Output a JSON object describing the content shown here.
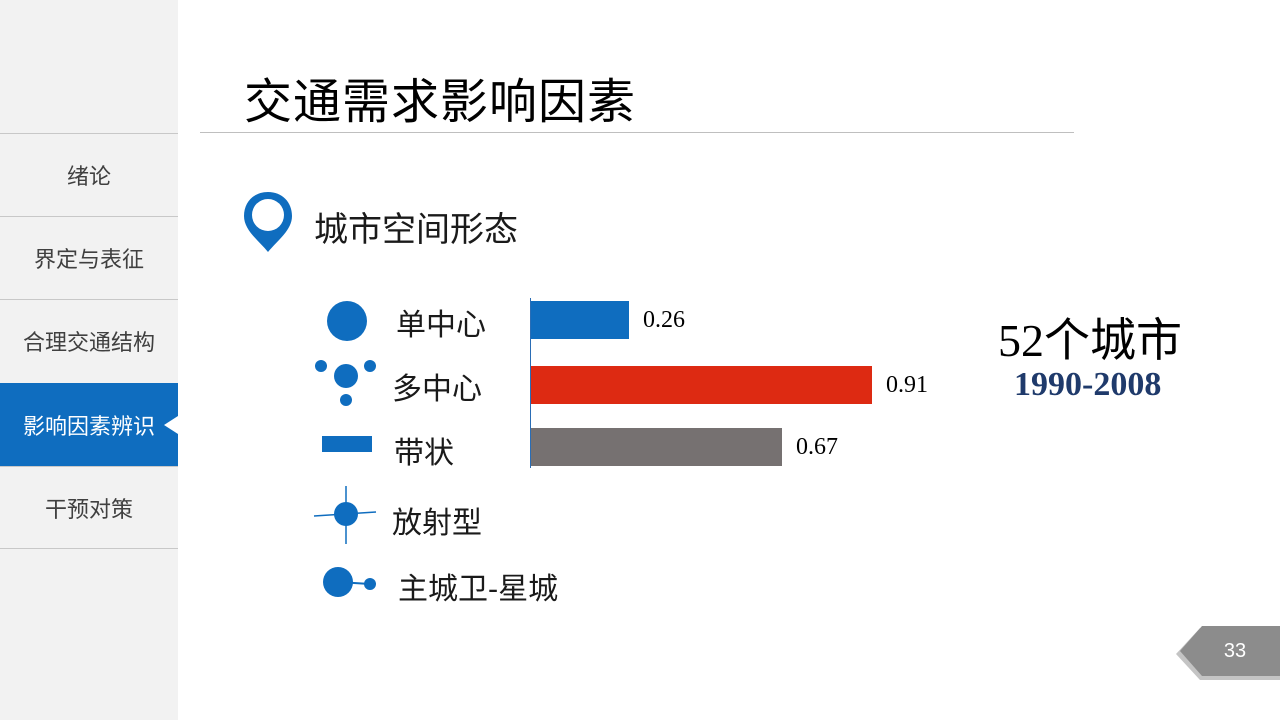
{
  "slide": {
    "title": "交通需求影响因素",
    "section_title": "城市空间形态",
    "page_number": "33"
  },
  "sidebar": {
    "items": [
      {
        "label": "绪论",
        "active": false
      },
      {
        "label": "界定与表征",
        "active": false
      },
      {
        "label": "合理交通结构",
        "active": false
      },
      {
        "label": "影响因素辨识",
        "active": true
      },
      {
        "label": "干预对策",
        "active": false
      }
    ]
  },
  "forms": [
    {
      "label": "单中心",
      "icon": "single-center-icon"
    },
    {
      "label": "多中心",
      "icon": "multi-center-icon"
    },
    {
      "label": "带状",
      "icon": "linear-band-icon"
    },
    {
      "label": "放射型",
      "icon": "radial-icon"
    },
    {
      "label": "主城卫-星城",
      "icon": "satellite-city-icon"
    }
  ],
  "sample": {
    "title": "52个城市",
    "years": "1990-2008"
  },
  "chart_data": {
    "type": "bar",
    "orientation": "horizontal",
    "categories": [
      "单中心",
      "多中心",
      "带状"
    ],
    "values": [
      0.26,
      0.91,
      0.67
    ],
    "value_labels": [
      "0.26",
      "0.91",
      "0.67"
    ],
    "colors": [
      "#0f6dbf",
      "#dd2a12",
      "#767171"
    ],
    "xlim": [
      0,
      1
    ]
  },
  "colors": {
    "accent": "#0f6dbf",
    "highlight": "#dd2a12",
    "neutral": "#767171"
  }
}
